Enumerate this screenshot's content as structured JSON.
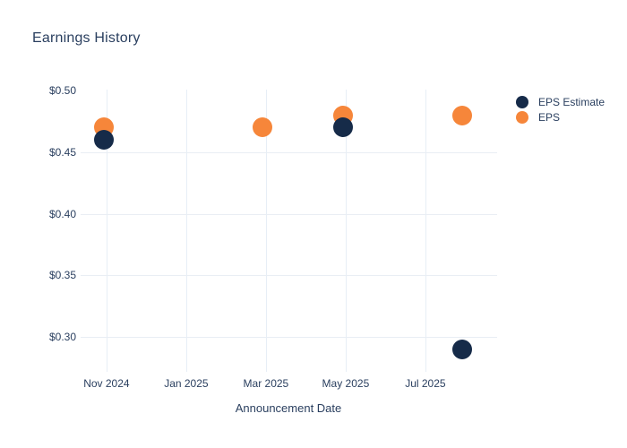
{
  "title": "Earnings History",
  "chart_data": {
    "type": "scatter",
    "title": "Earnings History",
    "xlabel": "Announcement Date",
    "ylabel": "",
    "x_ticks": [
      {
        "label": "Nov 2024",
        "m": 0
      },
      {
        "label": "Jan 2025",
        "m": 2
      },
      {
        "label": "Mar 2025",
        "m": 4
      },
      {
        "label": "May 2025",
        "m": 6
      },
      {
        "label": "Jul 2025",
        "m": 8
      }
    ],
    "y_ticks": [
      {
        "label": "$0.50",
        "v": 0.5
      },
      {
        "label": "$0.45",
        "v": 0.45
      },
      {
        "label": "$0.40",
        "v": 0.4
      },
      {
        "label": "$0.35",
        "v": 0.35
      },
      {
        "label": "$0.30",
        "v": 0.3
      }
    ],
    "grid_y_values": [
      0.45,
      0.4,
      0.35,
      0.3
    ],
    "xlim_months": [
      -0.65,
      9.8
    ],
    "ylim": [
      0.2716,
      0.5007
    ],
    "grid_on": true,
    "marker_diameter": 22,
    "series": [
      {
        "name": "EPS",
        "color": "#f6863a",
        "points": [
          {
            "m": -0.07,
            "y": 0.47
          },
          {
            "m": 3.91,
            "y": 0.47
          },
          {
            "m": 5.93,
            "y": 0.48
          },
          {
            "m": 8.92,
            "y": 0.48
          }
        ]
      },
      {
        "name": "EPS Estimate",
        "color": "#162b49",
        "points": [
          {
            "m": -0.07,
            "y": 0.46
          },
          {
            "m": 5.93,
            "y": 0.47
          },
          {
            "m": 8.92,
            "y": 0.29
          }
        ]
      }
    ],
    "legend": {
      "position": "top-right",
      "items": [
        {
          "label": "EPS Estimate",
          "color": "#162b49"
        },
        {
          "label": "EPS",
          "color": "#f6863a"
        }
      ]
    }
  }
}
